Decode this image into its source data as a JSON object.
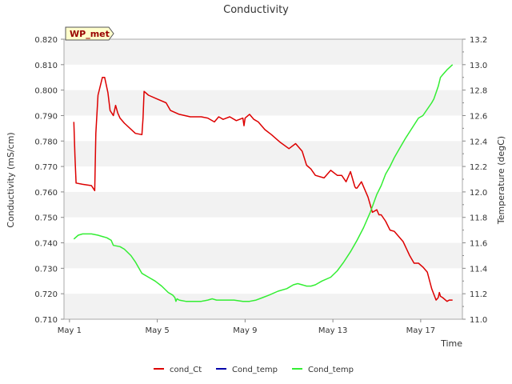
{
  "chart_data": {
    "type": "line",
    "title": "Conductivity",
    "badge": "WP_met",
    "xlabel": "Time",
    "ylabel_left": "Conductivity (mS/cm)",
    "ylabel_right": "Temperature (degC)",
    "x_unit": "days since May 1",
    "xlim": [
      -0.25,
      17.9
    ],
    "ylim_left": [
      0.71,
      0.82
    ],
    "ylim_right": [
      11.0,
      13.2
    ],
    "x_ticks": [
      {
        "value": 0,
        "label": "May 1"
      },
      {
        "value": 4,
        "label": "May 5"
      },
      {
        "value": 8,
        "label": "May 9"
      },
      {
        "value": 12,
        "label": "May 13"
      },
      {
        "value": 16,
        "label": "May 17"
      }
    ],
    "y_ticks_left": [
      {
        "value": 0.71,
        "label": "0.710"
      },
      {
        "value": 0.72,
        "label": "0.720"
      },
      {
        "value": 0.73,
        "label": "0.730"
      },
      {
        "value": 0.74,
        "label": "0.740"
      },
      {
        "value": 0.75,
        "label": "0.750"
      },
      {
        "value": 0.76,
        "label": "0.760"
      },
      {
        "value": 0.77,
        "label": "0.770"
      },
      {
        "value": 0.78,
        "label": "0.780"
      },
      {
        "value": 0.79,
        "label": "0.790"
      },
      {
        "value": 0.8,
        "label": "0.800"
      },
      {
        "value": 0.81,
        "label": "0.810"
      },
      {
        "value": 0.82,
        "label": "0.820"
      }
    ],
    "y_ticks_right": [
      {
        "value": 11.0,
        "label": "11.0"
      },
      {
        "value": 11.2,
        "label": "11.2"
      },
      {
        "value": 11.4,
        "label": "11.4"
      },
      {
        "value": 11.6,
        "label": "11.6"
      },
      {
        "value": 11.8,
        "label": "11.8"
      },
      {
        "value": 12.0,
        "label": "12.0"
      },
      {
        "value": 12.2,
        "label": "12.2"
      },
      {
        "value": 12.4,
        "label": "12.4"
      },
      {
        "value": 12.6,
        "label": "12.6"
      },
      {
        "value": 12.8,
        "label": "12.8"
      },
      {
        "value": 13.0,
        "label": "13.0"
      },
      {
        "value": 13.2,
        "label": "13.2"
      }
    ],
    "bands_left": [
      [
        0.71,
        0.72
      ],
      [
        0.73,
        0.74
      ],
      [
        0.75,
        0.76
      ],
      [
        0.77,
        0.78
      ],
      [
        0.79,
        0.8
      ],
      [
        0.81,
        0.82
      ]
    ],
    "series": [
      {
        "name": "cond_Ct",
        "color": "#dd0000",
        "axis": "left",
        "x": [
          0.2,
          0.25,
          0.3,
          0.6,
          1.0,
          1.15,
          1.2,
          1.3,
          1.5,
          1.6,
          1.75,
          1.85,
          2.0,
          2.1,
          2.2,
          2.3,
          2.5,
          3.0,
          3.3,
          3.35,
          3.4,
          3.6,
          4.0,
          4.4,
          4.6,
          5.0,
          5.5,
          6.0,
          6.3,
          6.6,
          6.8,
          7.0,
          7.3,
          7.6,
          7.9,
          7.95,
          8.0,
          8.2,
          8.4,
          8.6,
          8.9,
          9.2,
          9.6,
          10.0,
          10.3,
          10.6,
          10.8,
          11.0,
          11.2,
          11.6,
          11.9,
          12.2,
          12.4,
          12.6,
          12.8,
          13.0,
          13.05,
          13.1,
          13.3,
          13.6,
          13.8,
          14.0,
          14.1,
          14.2,
          14.4,
          14.6,
          14.8,
          15.0,
          15.2,
          15.5,
          15.7,
          15.9,
          16.1,
          16.3,
          16.5,
          16.7,
          16.8,
          16.85,
          16.9,
          17.0,
          17.2,
          17.3,
          17.45
        ],
        "y": [
          0.7875,
          0.774,
          0.7635,
          0.763,
          0.7625,
          0.7605,
          0.783,
          0.798,
          0.805,
          0.805,
          0.799,
          0.792,
          0.79,
          0.794,
          0.791,
          0.789,
          0.787,
          0.783,
          0.7825,
          0.789,
          0.7995,
          0.798,
          0.7965,
          0.795,
          0.792,
          0.7905,
          0.7895,
          0.7895,
          0.789,
          0.7875,
          0.7895,
          0.7885,
          0.7895,
          0.788,
          0.789,
          0.786,
          0.789,
          0.7905,
          0.7885,
          0.7875,
          0.7845,
          0.7825,
          0.7795,
          0.777,
          0.779,
          0.776,
          0.7705,
          0.769,
          0.7665,
          0.7655,
          0.7685,
          0.7665,
          0.7665,
          0.764,
          0.768,
          0.762,
          0.7615,
          0.7615,
          0.764,
          0.758,
          0.752,
          0.753,
          0.751,
          0.751,
          0.7485,
          0.745,
          0.7445,
          0.7425,
          0.7405,
          0.735,
          0.732,
          0.732,
          0.7305,
          0.7285,
          0.722,
          0.7175,
          0.7185,
          0.7205,
          0.719,
          0.7185,
          0.717,
          0.7175,
          0.7175
        ]
      },
      {
        "name": "Cond_temp",
        "color": "#0000aa",
        "axis": "right",
        "x": [],
        "y": []
      },
      {
        "name": "Cond_temp",
        "color": "#33ee33",
        "axis": "right",
        "x": [
          0.2,
          0.4,
          0.6,
          1.0,
          1.3,
          1.5,
          1.7,
          1.9,
          2.0,
          2.3,
          2.5,
          2.8,
          3.0,
          3.3,
          3.6,
          3.9,
          4.2,
          4.5,
          4.7,
          4.8,
          4.85,
          4.9,
          5.0,
          5.3,
          5.6,
          6.0,
          6.3,
          6.5,
          6.7,
          7.0,
          7.5,
          7.9,
          8.2,
          8.5,
          8.8,
          9.1,
          9.5,
          9.9,
          10.2,
          10.4,
          10.6,
          10.8,
          11.0,
          11.2,
          11.5,
          11.9,
          12.2,
          12.5,
          12.8,
          13.1,
          13.4,
          13.7,
          14.0,
          14.2,
          14.4,
          14.6,
          14.8,
          15.0,
          15.3,
          15.6,
          15.9,
          16.1,
          16.3,
          16.5,
          16.6,
          16.7,
          16.8,
          16.9,
          17.0,
          17.2,
          17.45
        ],
        "y": [
          11.63,
          11.66,
          11.67,
          11.67,
          11.66,
          11.65,
          11.64,
          11.62,
          11.58,
          11.57,
          11.55,
          11.5,
          11.45,
          11.36,
          11.33,
          11.3,
          11.26,
          11.21,
          11.19,
          11.17,
          11.14,
          11.16,
          11.15,
          11.14,
          11.14,
          11.14,
          11.15,
          11.16,
          11.15,
          11.15,
          11.15,
          11.14,
          11.14,
          11.15,
          11.17,
          11.19,
          11.22,
          11.24,
          11.27,
          11.28,
          11.27,
          11.26,
          11.26,
          11.27,
          11.3,
          11.33,
          11.38,
          11.45,
          11.53,
          11.62,
          11.72,
          11.84,
          11.98,
          12.05,
          12.14,
          12.2,
          12.27,
          12.33,
          12.42,
          12.5,
          12.58,
          12.6,
          12.65,
          12.7,
          12.73,
          12.78,
          12.83,
          12.9,
          12.92,
          12.96,
          13.0
        ]
      }
    ],
    "legend": [
      "cond_Ct",
      "Cond_temp",
      "Cond_temp"
    ],
    "legend_position": "bottom"
  }
}
